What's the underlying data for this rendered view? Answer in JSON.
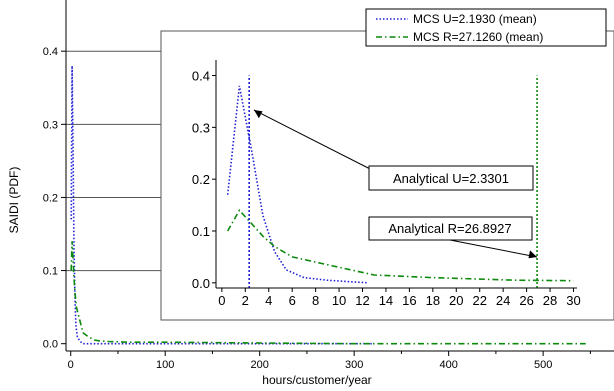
{
  "chart_data": [
    {
      "type": "line",
      "role": "main",
      "xlabel": "hours/customer/year",
      "ylabel": "SAIDI (PDF)",
      "xlim": [
        -5,
        575
      ],
      "ylim": [
        -0.01,
        0.47
      ],
      "x_ticks": [
        0,
        100,
        200,
        300,
        400,
        500
      ],
      "y_ticks": [
        0.0,
        0.1,
        0.2,
        0.3,
        0.4
      ],
      "y_tick_labels": [
        "0.0",
        "0.1",
        "0.2",
        "0.3",
        "0.4"
      ],
      "grid": "horizontal",
      "legend_position": "top-right",
      "series": [
        {
          "name": "MCS U=2.1930 (mean)",
          "color": "#1f1fd6",
          "dash": "dot",
          "x": [
            0.5,
            1.5,
            2.5,
            3.5,
            4.5,
            5.5,
            7,
            9,
            11,
            13,
            60,
            320
          ],
          "y": [
            0.17,
            0.38,
            0.26,
            0.13,
            0.06,
            0.025,
            0.01,
            0.005,
            0.002,
            0.0,
            0.0,
            0.0
          ]
        },
        {
          "name": "MCS R=27.1260 (mean)",
          "color": "#0d8a0d",
          "dash": "dashdot",
          "x": [
            0.5,
            1.5,
            2.5,
            3.5,
            4.5,
            6,
            8,
            10,
            13,
            18,
            25,
            30,
            40,
            60,
            100,
            200,
            300,
            400,
            500,
            545
          ],
          "y": [
            0.1,
            0.14,
            0.115,
            0.09,
            0.07,
            0.05,
            0.04,
            0.03,
            0.015,
            0.01,
            0.005,
            0.004,
            0.003,
            0.002,
            0.002,
            0.001,
            0.0,
            0.0,
            0.0,
            0.0
          ]
        }
      ]
    },
    {
      "type": "line",
      "role": "inset",
      "xlim": [
        -0.5,
        30.3
      ],
      "ylim": [
        -0.01,
        0.43
      ],
      "x_ticks": [
        0,
        2,
        4,
        6,
        8,
        10,
        12,
        14,
        16,
        18,
        20,
        22,
        24,
        26,
        28,
        30
      ],
      "y_ticks": [
        0.0,
        0.1,
        0.2,
        0.3,
        0.4
      ],
      "y_tick_labels": [
        "0.0",
        "0.1",
        "0.2",
        "0.3",
        "0.4"
      ],
      "series": [
        {
          "name": "MCS U=2.1930 (mean)",
          "color": "#1f1fd6",
          "dash": "dot",
          "x": [
            0.5,
            1.5,
            2.5,
            3.5,
            4.5,
            5.5,
            7,
            9,
            11,
            12.5
          ],
          "y": [
            0.17,
            0.38,
            0.26,
            0.13,
            0.06,
            0.025,
            0.01,
            0.005,
            0.002,
            0.0
          ]
        },
        {
          "name": "MCS R=27.1260 (mean)",
          "color": "#0d8a0d",
          "dash": "dashdot",
          "x": [
            0.5,
            1.5,
            2.5,
            3.5,
            4.5,
            6,
            8,
            10,
            13,
            18,
            25,
            30
          ],
          "y": [
            0.1,
            0.14,
            0.115,
            0.09,
            0.07,
            0.05,
            0.04,
            0.03,
            0.015,
            0.01,
            0.005,
            0.004
          ]
        }
      ],
      "vertical_lines": [
        {
          "x": 2.3301,
          "color": "#1f1fd6",
          "dash": "dot"
        },
        {
          "x": 26.8927,
          "color": "#0d8a0d",
          "dash": "dot"
        }
      ],
      "annotations": [
        {
          "text": "Analytical U=2.3301",
          "target_x": 2.3301,
          "target_y": 0.36
        },
        {
          "text": "Analytical R=26.8927",
          "target_x": 26.8927,
          "target_y": 0.05
        }
      ]
    }
  ],
  "legend": {
    "entries": [
      {
        "label": "MCS U=2.1930 (mean)",
        "color": "#1f1fd6",
        "dash": "dot"
      },
      {
        "label": "MCS R=27.1260 (mean)",
        "color": "#0d8a0d",
        "dash": "dashdot"
      }
    ]
  },
  "colors": {
    "axis": "#000000",
    "grid": "#555555",
    "inset_border": "#555555"
  }
}
